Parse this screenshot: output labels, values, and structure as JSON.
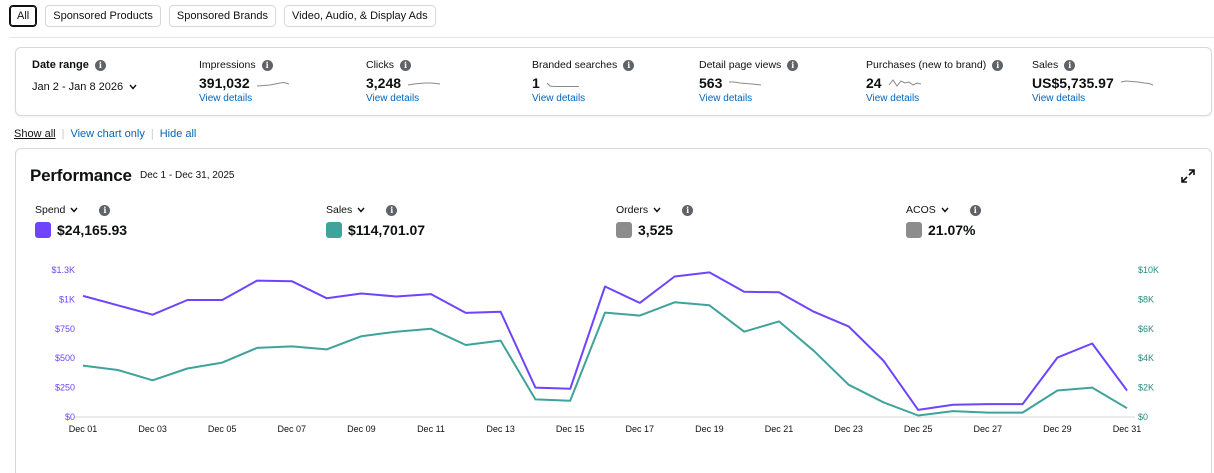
{
  "filters": [
    {
      "label": "All",
      "active": true
    },
    {
      "label": "Sponsored Products",
      "active": false
    },
    {
      "label": "Sponsored Brands",
      "active": false
    },
    {
      "label": "Video, Audio, & Display Ads",
      "active": false
    }
  ],
  "date_range": {
    "label": "Date range",
    "value": "Jan 2 - Jan 8 2026"
  },
  "metrics": [
    {
      "label": "Impressions",
      "value": "391,032",
      "link": "View details"
    },
    {
      "label": "Clicks",
      "value": "3,248",
      "link": "View details"
    },
    {
      "label": "Branded searches",
      "value": "1",
      "link": "View details"
    },
    {
      "label": "Detail page views",
      "value": "563",
      "link": "View details"
    },
    {
      "label": "Purchases (new to brand)",
      "value": "24",
      "link": "View details"
    },
    {
      "label": "Sales",
      "value": "US$5,735.97",
      "link": "View details"
    }
  ],
  "view_toggles": {
    "show_all": "Show all",
    "view_chart": "View chart only",
    "hide_all": "Hide all"
  },
  "performance": {
    "title": "Performance",
    "range": "Dec 1 - Dec 31, 2025",
    "kpis": [
      {
        "label": "Spend",
        "value": "$24,165.93",
        "color": "#6e44ff"
      },
      {
        "label": "Sales",
        "value": "$114,701.07",
        "color": "#3fa39b"
      },
      {
        "label": "Orders",
        "value": "3,525",
        "color": "#8c8c8c"
      },
      {
        "label": "ACOS",
        "value": "21.07%",
        "color": "#8c8c8c"
      }
    ]
  },
  "chart_data": {
    "type": "line",
    "x": [
      "Dec 01",
      "Dec 02",
      "Dec 03",
      "Dec 04",
      "Dec 05",
      "Dec 06",
      "Dec 07",
      "Dec 08",
      "Dec 09",
      "Dec 10",
      "Dec 11",
      "Dec 12",
      "Dec 13",
      "Dec 14",
      "Dec 15",
      "Dec 16",
      "Dec 17",
      "Dec 18",
      "Dec 19",
      "Dec 20",
      "Dec 21",
      "Dec 22",
      "Dec 23",
      "Dec 24",
      "Dec 25",
      "Dec 26",
      "Dec 27",
      "Dec 28",
      "Dec 29",
      "Dec 30",
      "Dec 31"
    ],
    "x_tick_labels": [
      "Dec 01",
      "Dec 03",
      "Dec 05",
      "Dec 07",
      "Dec 09",
      "Dec 11",
      "Dec 13",
      "Dec 15",
      "Dec 17",
      "Dec 19",
      "Dec 21",
      "Dec 23",
      "Dec 25",
      "Dec 27",
      "Dec 29",
      "Dec 31"
    ],
    "left_axis": {
      "ticks": [
        "$0",
        "$250",
        "$500",
        "$750",
        "$1K",
        "$1.3K"
      ],
      "tick_values": [
        0,
        250,
        500,
        750,
        1000,
        1250
      ],
      "ylim": [
        0,
        1250
      ],
      "color": "#6e44ff"
    },
    "right_axis": {
      "ticks": [
        "$0",
        "$2K",
        "$4K",
        "$6K",
        "$8K",
        "$10K"
      ],
      "tick_values": [
        0,
        2000,
        4000,
        6000,
        8000,
        10000
      ],
      "ylim": [
        0,
        10000
      ],
      "color": "#2a8a80"
    },
    "series": [
      {
        "name": "Spend",
        "axis": "left",
        "color": "#6e44ff",
        "values": [
          1030,
          950,
          870,
          995,
          995,
          1160,
          1155,
          1010,
          1050,
          1025,
          1045,
          885,
          895,
          250,
          240,
          1110,
          970,
          1195,
          1230,
          1065,
          1060,
          895,
          770,
          480,
          60,
          105,
          110,
          110,
          505,
          625,
          225
        ]
      },
      {
        "name": "Sales",
        "axis": "right",
        "color": "#3fa39b",
        "values": [
          3500,
          3200,
          2500,
          3300,
          3700,
          4700,
          4800,
          4600,
          5500,
          5800,
          6000,
          4900,
          5200,
          1200,
          1100,
          7100,
          6900,
          7800,
          7600,
          5800,
          6500,
          4500,
          2200,
          1000,
          100,
          400,
          300,
          300,
          1800,
          2000,
          600
        ]
      }
    ]
  }
}
